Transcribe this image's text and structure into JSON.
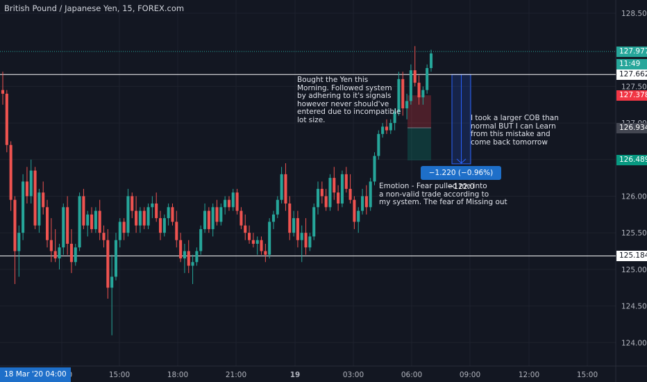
{
  "title": "British Pound / Japanese Yen, 15, FOREX.com",
  "colors": {
    "background": "#131722",
    "grid": "#1e222d",
    "up": "#26a69a",
    "down": "#ef5350",
    "axis_text": "#b2b5be",
    "accent": "#1e6fc9"
  },
  "chart_data": {
    "type": "candlestick",
    "symbol": "British Pound / Japanese Yen",
    "interval": "15",
    "source": "FOREX.com",
    "y_ticks": [
      "128.500",
      "127.500",
      "127.000",
      "126.500",
      "126.000",
      "125.500",
      "125.000",
      "124.500",
      "124.000"
    ],
    "x_ticks": [
      "12:00",
      "15:00",
      "18:00",
      "21:00",
      "19",
      "03:00",
      "06:00",
      "09:00",
      "12:00",
      "15:00"
    ],
    "x_ticks_bold": [
      false,
      false,
      false,
      false,
      true,
      false,
      false,
      false,
      false,
      false
    ],
    "ylim": [
      123.68,
      128.68
    ],
    "grid": true,
    "price_levels": [
      {
        "label": "127.977",
        "value": 127.977,
        "bg": "#26a69a",
        "fg": "#ffffff",
        "line": "dotted"
      },
      {
        "label": "11:49",
        "value": 127.8,
        "bg": "#26a69a",
        "fg": "#ffffff",
        "line": "none"
      },
      {
        "label": "127.662",
        "value": 127.662,
        "bg": "#ffffff",
        "fg": "#131722",
        "line": "solid-white"
      },
      {
        "label": "127.378",
        "value": 127.378,
        "bg": "#f23645",
        "fg": "#ffffff",
        "line": "none"
      },
      {
        "label": "126.934",
        "value": 126.934,
        "bg": "#434651",
        "fg": "#ffffff",
        "line": "none"
      },
      {
        "label": "126.489",
        "value": 126.489,
        "bg": "#089981",
        "fg": "#ffffff",
        "line": "none"
      },
      {
        "label": "125.184",
        "value": 125.184,
        "bg": "#ffffff",
        "fg": "#131722",
        "line": "solid-white"
      }
    ],
    "candles_ohlc": [
      [
        127.45,
        127.7,
        127.25,
        127.4
      ],
      [
        127.4,
        127.45,
        126.6,
        126.7
      ],
      [
        126.7,
        126.75,
        125.8,
        125.95
      ],
      [
        125.95,
        126.0,
        124.8,
        125.25
      ],
      [
        125.25,
        125.6,
        124.9,
        125.5
      ],
      [
        125.5,
        126.3,
        125.4,
        126.2
      ],
      [
        126.2,
        126.4,
        125.9,
        126.0
      ],
      [
        126.0,
        126.5,
        125.9,
        126.35
      ],
      [
        126.35,
        126.4,
        125.55,
        125.6
      ],
      [
        125.6,
        126.1,
        125.5,
        126.05
      ],
      [
        126.05,
        126.2,
        125.75,
        125.85
      ],
      [
        125.85,
        125.95,
        125.3,
        125.4
      ],
      [
        125.4,
        125.7,
        125.1,
        125.25
      ],
      [
        125.25,
        125.55,
        125.1,
        125.15
      ],
      [
        125.15,
        125.35,
        125.0,
        125.3
      ],
      [
        125.3,
        125.9,
        125.2,
        125.85
      ],
      [
        125.85,
        126.0,
        125.2,
        125.35
      ],
      [
        125.35,
        125.55,
        124.95,
        125.1
      ],
      [
        125.1,
        125.35,
        125.05,
        125.3
      ],
      [
        125.3,
        126.05,
        125.25,
        126.0
      ],
      [
        126.0,
        126.1,
        125.55,
        125.6
      ],
      [
        125.6,
        125.8,
        125.45,
        125.75
      ],
      [
        125.75,
        125.85,
        125.5,
        125.55
      ],
      [
        125.55,
        125.85,
        125.5,
        125.8
      ],
      [
        125.8,
        125.95,
        125.4,
        125.5
      ],
      [
        125.5,
        125.6,
        125.3,
        125.4
      ],
      [
        125.4,
        125.55,
        124.6,
        124.75
      ],
      [
        124.75,
        125.2,
        124.1,
        124.9
      ],
      [
        124.9,
        125.5,
        124.85,
        125.4
      ],
      [
        125.4,
        125.7,
        125.3,
        125.65
      ],
      [
        125.65,
        125.7,
        125.4,
        125.5
      ],
      [
        125.5,
        126.1,
        125.45,
        126.0
      ],
      [
        126.0,
        126.05,
        125.7,
        125.8
      ],
      [
        125.8,
        126.0,
        125.5,
        125.6
      ],
      [
        125.6,
        125.85,
        125.5,
        125.8
      ],
      [
        125.8,
        125.85,
        125.55,
        125.6
      ],
      [
        125.6,
        125.9,
        125.55,
        125.85
      ],
      [
        125.85,
        126.0,
        125.7,
        125.9
      ],
      [
        125.9,
        126.05,
        125.65,
        125.7
      ],
      [
        125.7,
        125.8,
        125.4,
        125.5
      ],
      [
        125.5,
        125.75,
        125.45,
        125.7
      ],
      [
        125.7,
        125.9,
        125.6,
        125.85
      ],
      [
        125.85,
        125.9,
        125.6,
        125.65
      ],
      [
        125.65,
        125.8,
        125.3,
        125.4
      ],
      [
        125.4,
        125.5,
        125.1,
        125.15
      ],
      [
        125.15,
        125.35,
        124.95,
        125.25
      ],
      [
        125.25,
        125.4,
        124.95,
        125.05
      ],
      [
        125.05,
        125.2,
        124.8,
        125.1
      ],
      [
        125.1,
        125.3,
        125.05,
        125.25
      ],
      [
        125.25,
        125.6,
        125.2,
        125.55
      ],
      [
        125.55,
        125.9,
        125.5,
        125.8
      ],
      [
        125.8,
        125.85,
        125.5,
        125.55
      ],
      [
        125.55,
        125.9,
        125.45,
        125.85
      ],
      [
        125.85,
        125.95,
        125.6,
        125.65
      ],
      [
        125.65,
        125.9,
        125.6,
        125.85
      ],
      [
        125.85,
        126.0,
        125.75,
        125.95
      ],
      [
        125.95,
        126.0,
        125.8,
        125.85
      ],
      [
        125.85,
        126.1,
        125.8,
        126.05
      ],
      [
        126.05,
        126.1,
        125.75,
        125.8
      ],
      [
        125.8,
        125.85,
        125.55,
        125.6
      ],
      [
        125.6,
        125.75,
        125.4,
        125.5
      ],
      [
        125.5,
        125.6,
        125.35,
        125.4
      ],
      [
        125.4,
        125.5,
        125.3,
        125.35
      ],
      [
        125.35,
        125.45,
        125.2,
        125.4
      ],
      [
        125.4,
        125.45,
        125.2,
        125.25
      ],
      [
        125.25,
        125.35,
        125.1,
        125.2
      ],
      [
        125.2,
        125.7,
        125.15,
        125.65
      ],
      [
        125.65,
        125.8,
        125.55,
        125.75
      ],
      [
        125.75,
        126.0,
        125.7,
        125.95
      ],
      [
        125.95,
        126.4,
        125.9,
        126.3
      ],
      [
        126.3,
        126.45,
        125.8,
        125.9
      ],
      [
        125.9,
        126.0,
        125.4,
        125.5
      ],
      [
        125.5,
        125.8,
        125.45,
        125.7
      ],
      [
        125.7,
        125.8,
        125.3,
        125.4
      ],
      [
        125.4,
        125.6,
        125.1,
        125.5
      ],
      [
        125.5,
        125.7,
        125.2,
        125.3
      ],
      [
        125.3,
        125.5,
        125.25,
        125.45
      ],
      [
        125.45,
        125.9,
        125.4,
        125.85
      ],
      [
        125.85,
        126.2,
        125.75,
        126.1
      ],
      [
        126.1,
        126.2,
        125.9,
        126.0
      ],
      [
        126.0,
        126.1,
        125.8,
        125.85
      ],
      [
        125.85,
        126.3,
        125.8,
        126.25
      ],
      [
        126.25,
        126.4,
        125.95,
        126.05
      ],
      [
        126.05,
        126.15,
        125.8,
        125.9
      ],
      [
        125.9,
        126.35,
        125.85,
        126.3
      ],
      [
        126.3,
        126.4,
        126.05,
        126.1
      ],
      [
        126.1,
        126.3,
        125.9,
        125.95
      ],
      [
        125.95,
        126.0,
        125.55,
        125.65
      ],
      [
        125.65,
        125.85,
        125.5,
        125.8
      ],
      [
        125.8,
        126.1,
        125.75,
        126.0
      ],
      [
        126.0,
        126.15,
        125.75,
        125.85
      ],
      [
        125.85,
        126.25,
        125.8,
        126.2
      ],
      [
        126.2,
        126.6,
        126.15,
        126.55
      ],
      [
        126.55,
        126.9,
        126.5,
        126.85
      ],
      [
        126.85,
        127.0,
        126.8,
        126.95
      ],
      [
        126.95,
        127.05,
        126.85,
        126.9
      ],
      [
        126.9,
        127.05,
        126.85,
        127.0
      ],
      [
        127.0,
        127.2,
        126.9,
        127.15
      ],
      [
        127.15,
        127.7,
        127.1,
        127.6
      ],
      [
        127.6,
        127.7,
        127.1,
        127.2
      ],
      [
        127.2,
        127.4,
        127.05,
        127.3
      ],
      [
        127.3,
        127.8,
        127.25,
        127.72
      ],
      [
        127.72,
        128.05,
        127.5,
        127.55
      ],
      [
        127.55,
        127.65,
        127.25,
        127.35
      ],
      [
        127.35,
        127.5,
        127.25,
        127.45
      ],
      [
        127.45,
        127.8,
        127.4,
        127.75
      ],
      [
        127.75,
        128.0,
        127.7,
        127.95
      ]
    ]
  },
  "annotations": {
    "bought_note": "Bought the Yen this\nMorning. Followed system\nby adhering to it's signals\nhowever never should've\nentered due to incompatible\nlot size.",
    "cob_note": "I took a larger COB than\nnormal BUT I can Learn\nfrom this mistake and\ncome back tomorrow",
    "emotion_note": "Emotion - Fear pulled me into\n a non-valid trade according to\nmy system. The fear of Missing out",
    "measure_label": "−1.220 (−0.96%) −122.0"
  },
  "date_badge": "18 Mar '20   04:00"
}
